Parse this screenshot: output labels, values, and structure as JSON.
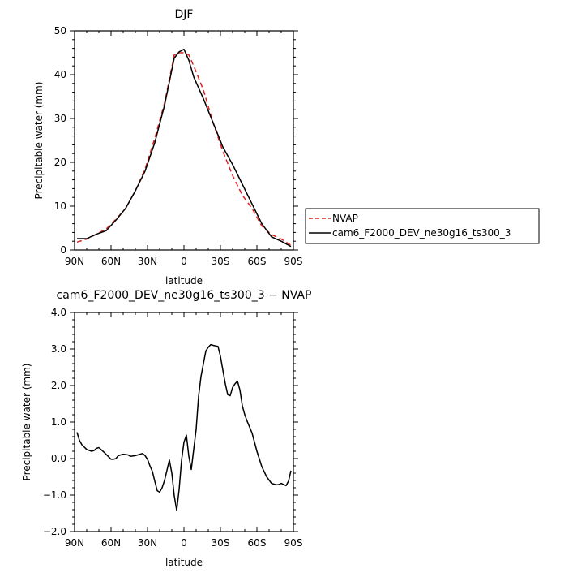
{
  "chart_data": [
    {
      "type": "line",
      "title": "DJF",
      "xlabel": "latitude",
      "ylabel": "Precipitable water (mm)",
      "xlim": [
        90,
        -90
      ],
      "ylim": [
        0,
        50
      ],
      "x_tick_values": [
        90,
        60,
        30,
        0,
        -30,
        -60,
        -90
      ],
      "x_tick_labels": [
        "90N",
        "60N",
        "30N",
        "0",
        "30S",
        "60S",
        "90S"
      ],
      "y_tick_values": [
        0,
        10,
        20,
        30,
        40,
        50
      ],
      "y_tick_labels": [
        "0",
        "10",
        "20",
        "30",
        "40",
        "50"
      ],
      "legend": {
        "placement": "right, outside plot, lower",
        "entries": [
          "NVAP",
          "cam6_F2000_DEV_ne30g16_ts300_3"
        ]
      },
      "series": [
        {
          "name": "NVAP",
          "color": "#e0201e",
          "style": "dashed",
          "x": [
            88,
            80,
            72,
            64,
            56,
            48,
            40,
            32,
            24,
            16,
            8,
            4,
            0,
            -4,
            -8,
            -16,
            -24,
            -32,
            -40,
            -48,
            -56,
            -64,
            -72,
            -80,
            -88
          ],
          "y": [
            1.8,
            2.5,
            3.6,
            4.8,
            7.0,
            9.5,
            13.5,
            18.5,
            25.5,
            33.5,
            44.5,
            45.0,
            45.0,
            44.5,
            42.0,
            36.5,
            29.0,
            22.5,
            17.0,
            12.5,
            9.5,
            5.5,
            3.5,
            2.5,
            1.1
          ]
        },
        {
          "name": "cam6_F2000_DEV_ne30g16_ts300_3",
          "color": "#000000",
          "style": "solid",
          "x": [
            88,
            80,
            72,
            64,
            56,
            48,
            40,
            32,
            24,
            16,
            8,
            4,
            0,
            -4,
            -8,
            -16,
            -24,
            -32,
            -40,
            -48,
            -56,
            -64,
            -72,
            -80,
            -88
          ],
          "y": [
            2.6,
            2.6,
            3.6,
            4.4,
            6.8,
            9.5,
            13.5,
            18.0,
            24.5,
            33.0,
            43.8,
            45.2,
            45.8,
            43.3,
            39.5,
            34.5,
            29.0,
            23.5,
            19.5,
            15.0,
            10.5,
            6.0,
            3.0,
            2.0,
            0.8
          ]
        }
      ]
    },
    {
      "type": "line",
      "title": "cam6_F2000_DEV_ne30g16_ts300_3 − NVAP",
      "xlabel": "latitude",
      "ylabel": "Precipitable water (mm)",
      "xlim": [
        90,
        -90
      ],
      "ylim": [
        -2.0,
        4.0
      ],
      "x_tick_values": [
        90,
        60,
        30,
        0,
        -30,
        -60,
        -90
      ],
      "x_tick_labels": [
        "90N",
        "60N",
        "30N",
        "0",
        "30S",
        "60S",
        "90S"
      ],
      "y_tick_values": [
        -2.0,
        -1.0,
        0.0,
        1.0,
        2.0,
        3.0,
        4.0
      ],
      "y_tick_labels": [
        "−2.0",
        "−1.0",
        "0.0",
        "1.0",
        "2.0",
        "3.0",
        "4.0"
      ],
      "series": [
        {
          "color": "#000000",
          "style": "solid",
          "x": [
            88,
            86,
            84,
            80,
            76,
            74,
            72,
            70,
            66,
            62,
            60,
            58,
            56,
            54,
            52,
            50,
            46,
            44,
            40,
            38,
            36,
            34,
            32,
            30,
            28,
            26,
            24,
            22,
            20,
            18,
            16,
            14,
            12,
            10,
            8,
            6,
            4,
            2,
            0,
            -2,
            -4,
            -6,
            -10,
            -12,
            -14,
            -16,
            -18,
            -20,
            -22,
            -24,
            -28,
            -30,
            -32,
            -34,
            -36,
            -38,
            -40,
            -42,
            -44,
            -46,
            -48,
            -50,
            -52,
            -56,
            -60,
            -64,
            -68,
            -72,
            -76,
            -78,
            -80,
            -84,
            -86,
            -88
          ],
          "y": [
            0.72,
            0.5,
            0.38,
            0.25,
            0.2,
            0.22,
            0.28,
            0.3,
            0.18,
            0.05,
            -0.02,
            -0.02,
            0.0,
            0.08,
            0.1,
            0.12,
            0.1,
            0.06,
            0.08,
            0.1,
            0.12,
            0.14,
            0.08,
            -0.02,
            -0.2,
            -0.35,
            -0.62,
            -0.88,
            -0.92,
            -0.8,
            -0.6,
            -0.32,
            -0.04,
            -0.4,
            -1.02,
            -1.42,
            -0.85,
            -0.05,
            0.45,
            0.64,
            0.06,
            -0.3,
            0.8,
            1.7,
            2.25,
            2.6,
            2.95,
            3.05,
            3.12,
            3.1,
            3.07,
            2.8,
            2.42,
            2.05,
            1.75,
            1.72,
            1.95,
            2.05,
            2.12,
            1.88,
            1.45,
            1.2,
            1.02,
            0.7,
            0.2,
            -0.22,
            -0.5,
            -0.68,
            -0.72,
            -0.71,
            -0.68,
            -0.74,
            -0.62,
            -0.33
          ]
        }
      ]
    }
  ]
}
